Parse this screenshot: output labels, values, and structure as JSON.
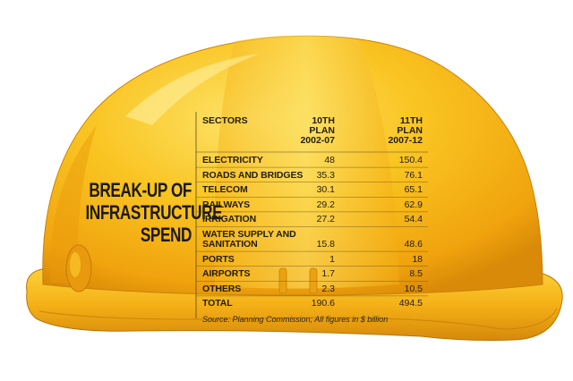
{
  "heading": {
    "line1": "BREAK-UP OF",
    "line2": "INFRASTRUCTURE",
    "line3": "SPEND"
  },
  "chart_data": {
    "type": "table",
    "title": "BREAK-UP OF INFRASTRUCTURE SPEND",
    "columns": {
      "sector": "SECTORS",
      "col1": [
        "10TH",
        "PLAN",
        "2002-07"
      ],
      "col2": [
        "11TH",
        "PLAN",
        "2007-12"
      ]
    },
    "rows": [
      {
        "sector": [
          "ELECTRICITY"
        ],
        "v1": "48",
        "v2": "150.4"
      },
      {
        "sector": [
          "ROADS AND BRIDGES"
        ],
        "v1": "35.3",
        "v2": "76.1"
      },
      {
        "sector": [
          "TELECOM"
        ],
        "v1": "30.1",
        "v2": "65.1"
      },
      {
        "sector": [
          "RAILWAYS"
        ],
        "v1": "29.2",
        "v2": "62.9"
      },
      {
        "sector": [
          "IRRIGATION"
        ],
        "v1": "27.2",
        "v2": "54.4"
      },
      {
        "sector": [
          "WATER SUPPLY AND",
          "SANITATION"
        ],
        "v1": "15.8",
        "v2": "48.6"
      },
      {
        "sector": [
          "PORTS"
        ],
        "v1": "1",
        "v2": "18"
      },
      {
        "sector": [
          "AIRPORTS"
        ],
        "v1": "1.7",
        "v2": "8.5"
      },
      {
        "sector": [
          "OTHERS"
        ],
        "v1": "2.3",
        "v2": "10.5"
      },
      {
        "sector": [
          "TOTAL"
        ],
        "v1": "190.6",
        "v2": "494.5"
      }
    ],
    "source": "Source: Planning Commission; All figures in $ billion"
  },
  "colors": {
    "helmet": "#f7b314",
    "helmet_light": "#fbd33a",
    "helmet_shadow": "#d2860a",
    "text": "#221d10"
  }
}
